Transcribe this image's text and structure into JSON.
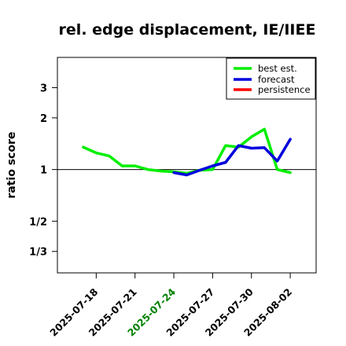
{
  "chart_data": {
    "type": "line",
    "title": "rel. edge displacement, IE/IIEE",
    "xlabel": "",
    "ylabel": "ratio score",
    "y_scale": "log",
    "ylim": [
      0.25,
      4.5
    ],
    "y_ticks": [
      {
        "value": 3,
        "label": "3"
      },
      {
        "value": 2,
        "label": "2"
      },
      {
        "value": 1,
        "label": "1"
      },
      {
        "value": 0.5,
        "label": "1/2"
      },
      {
        "value": 0.3333,
        "label": "1/3"
      }
    ],
    "x_range": [
      "2025-07-15",
      "2025-08-04"
    ],
    "x_ticks": [
      "2025-07-18",
      "2025-07-21",
      "2025-07-24",
      "2025-07-27",
      "2025-07-30",
      "2025-08-02"
    ],
    "x_tick_colors": [
      "#000000",
      "#000000",
      "#008000",
      "#000000",
      "#000000",
      "#000000"
    ],
    "reference_line": 1,
    "grid": false,
    "legend_position": "top-right",
    "series": [
      {
        "name": "best est.",
        "color": "#00ee00",
        "x": [
          "2025-07-17",
          "2025-07-18",
          "2025-07-19",
          "2025-07-20",
          "2025-07-21",
          "2025-07-22",
          "2025-07-23",
          "2025-07-24",
          "2025-07-25",
          "2025-07-26",
          "2025-07-27",
          "2025-07-28",
          "2025-07-29",
          "2025-07-30",
          "2025-07-31",
          "2025-08-01",
          "2025-08-02"
        ],
        "values": [
          1.35,
          1.25,
          1.2,
          1.05,
          1.05,
          1.0,
          0.98,
          0.97,
          0.95,
          0.99,
          1.0,
          1.38,
          1.35,
          1.55,
          1.72,
          1.0,
          0.96
        ]
      },
      {
        "name": "forecast",
        "color": "#0000dd",
        "x": [
          "2025-07-24",
          "2025-07-25",
          "2025-07-26",
          "2025-07-27",
          "2025-07-28",
          "2025-07-29",
          "2025-07-30",
          "2025-07-31",
          "2025-08-01",
          "2025-08-02"
        ],
        "values": [
          0.96,
          0.93,
          0.99,
          1.05,
          1.1,
          1.38,
          1.33,
          1.34,
          1.12,
          1.5
        ]
      },
      {
        "name": "persistence",
        "color": "#ff0000",
        "x": [],
        "values": []
      }
    ]
  }
}
